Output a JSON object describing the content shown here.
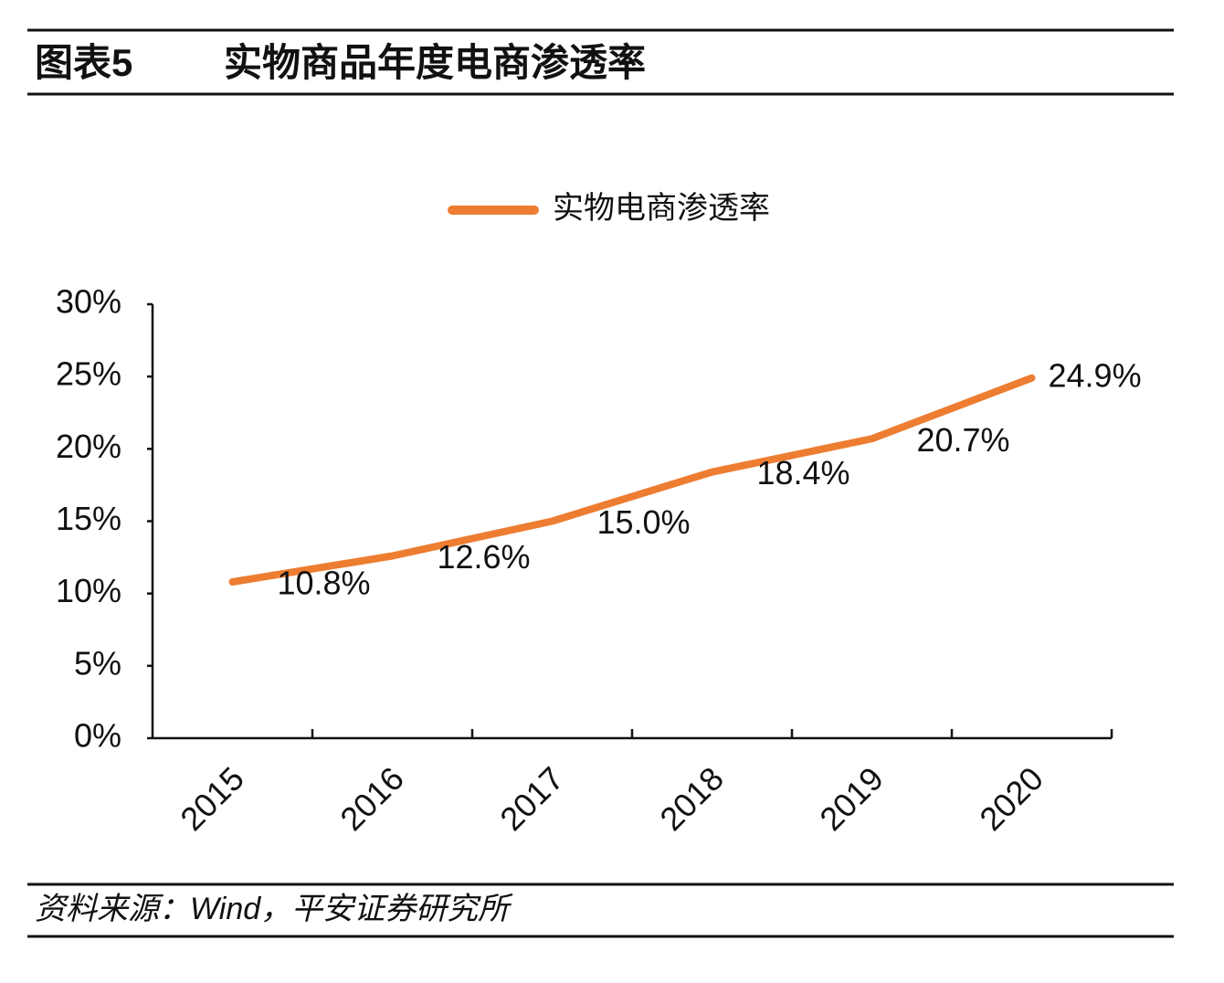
{
  "chart_data": {
    "type": "line",
    "figure_label": "图表5",
    "title": "实物商品年度电商渗透率",
    "source": "资料来源：Wind，平安证券研究所",
    "categories": [
      "2015",
      "2016",
      "2017",
      "2018",
      "2019",
      "2020"
    ],
    "series": [
      {
        "name": "实物电商渗透率",
        "color": "#ed7d31",
        "values": [
          10.8,
          12.6,
          15.0,
          18.4,
          20.7,
          24.9
        ],
        "value_labels": [
          "10.8%",
          "12.6%",
          "15.0%",
          "18.4%",
          "20.7%",
          "24.9%"
        ]
      }
    ],
    "ylim": [
      0,
      30
    ],
    "yticks": [
      {
        "value": 0,
        "label": "0%"
      },
      {
        "value": 5,
        "label": "5%"
      },
      {
        "value": 10,
        "label": "10%"
      },
      {
        "value": 15,
        "label": "15%"
      },
      {
        "value": 20,
        "label": "20%"
      },
      {
        "value": 25,
        "label": "25%"
      },
      {
        "value": 30,
        "label": "30%"
      }
    ],
    "legend": "top"
  }
}
